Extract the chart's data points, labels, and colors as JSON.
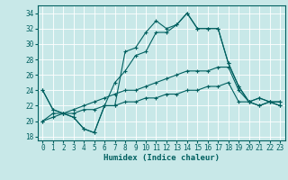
{
  "xlabel": "Humidex (Indice chaleur)",
  "ylabel": "",
  "background_color": "#c8e8e8",
  "grid_color": "#ffffff",
  "line_color": "#006060",
  "xlim": [
    -0.5,
    23.5
  ],
  "ylim": [
    17.5,
    35
  ],
  "xticks": [
    0,
    1,
    2,
    3,
    4,
    5,
    6,
    7,
    8,
    9,
    10,
    11,
    12,
    13,
    14,
    15,
    16,
    17,
    18,
    19,
    20,
    21,
    22,
    23
  ],
  "yticks": [
    18,
    20,
    22,
    24,
    26,
    28,
    30,
    32,
    34
  ],
  "series": [
    [
      24.0,
      21.5,
      21.0,
      20.5,
      19.0,
      18.5,
      22.0,
      22.0,
      29.0,
      29.5,
      31.5,
      33.0,
      32.0,
      32.5,
      34.0,
      32.0,
      32.0,
      32.0,
      27.5,
      24.5,
      22.5,
      23.0,
      22.5,
      22.0
    ],
    [
      24.0,
      21.5,
      21.0,
      20.5,
      19.0,
      18.5,
      22.0,
      25.0,
      26.5,
      28.5,
      29.0,
      31.5,
      31.5,
      32.5,
      34.0,
      32.0,
      32.0,
      32.0,
      27.5,
      24.5,
      22.5,
      23.0,
      22.5,
      22.0
    ],
    [
      20.0,
      21.0,
      21.0,
      21.5,
      22.0,
      22.5,
      23.0,
      23.5,
      24.0,
      24.0,
      24.5,
      25.0,
      25.5,
      26.0,
      26.5,
      26.5,
      26.5,
      27.0,
      27.0,
      24.0,
      22.5,
      22.0,
      22.5,
      22.5
    ],
    [
      20.0,
      20.5,
      21.0,
      21.0,
      21.5,
      21.5,
      22.0,
      22.0,
      22.5,
      22.5,
      23.0,
      23.0,
      23.5,
      23.5,
      24.0,
      24.0,
      24.5,
      24.5,
      25.0,
      22.5,
      22.5,
      22.0,
      22.5,
      22.5
    ]
  ],
  "marker": "+",
  "markersize": 3,
  "linewidth": 0.8,
  "tick_fontsize": 5.5,
  "xlabel_fontsize": 6.5
}
